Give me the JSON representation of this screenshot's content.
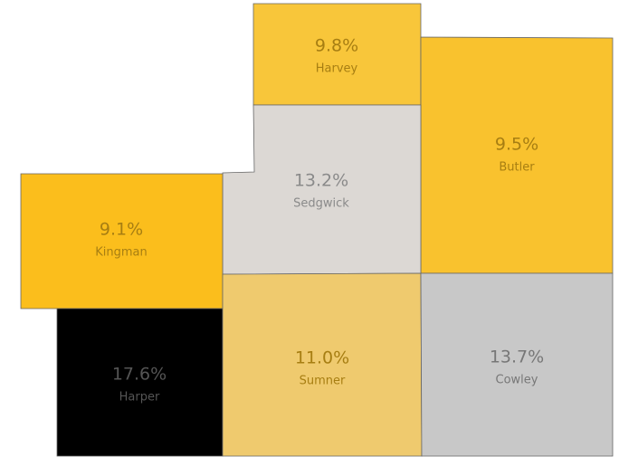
{
  "map_data": {
    "regions": [
      {
        "name": "Harvey",
        "value": 9.8,
        "label": "9.8%",
        "color": "#f8c63a",
        "text_color": "#a77e12"
      },
      {
        "name": "Butler",
        "value": 9.5,
        "label": "9.5%",
        "color": "#f9c22e",
        "text_color": "#a77e12"
      },
      {
        "name": "Sedgwick",
        "value": 13.2,
        "label": "13.2%",
        "color": "#dcd8d4",
        "text_color": "#8a8a8a"
      },
      {
        "name": "Kingman",
        "value": 9.1,
        "label": "9.1%",
        "color": "#fbbe1c",
        "text_color": "#a77e12"
      },
      {
        "name": "Harper",
        "value": 17.6,
        "label": "17.6%",
        "color": "#000000",
        "text_color": "#555555"
      },
      {
        "name": "Sumner",
        "value": 11.0,
        "label": "11.0%",
        "color": "#efca6e",
        "text_color": "#a77e12"
      },
      {
        "name": "Cowley",
        "value": 13.7,
        "label": "13.7%",
        "color": "#c8c8c8",
        "text_color": "#777777"
      }
    ]
  }
}
